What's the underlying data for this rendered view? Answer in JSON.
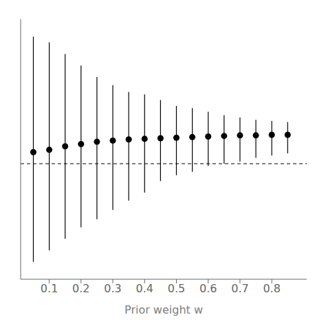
{
  "chart_data": {
    "type": "interval",
    "x": [
      0.05,
      0.1,
      0.15,
      0.2,
      0.25,
      0.3,
      0.35,
      0.4,
      0.45,
      0.5,
      0.55,
      0.6,
      0.65,
      0.7,
      0.75,
      0.8,
      0.85
    ],
    "values": [
      2.0,
      2.2,
      2.5,
      2.7,
      2.9,
      3.0,
      3.1,
      3.15,
      3.2,
      3.25,
      3.3,
      3.35,
      3.4,
      3.45,
      3.45,
      3.5,
      3.5
    ],
    "ci_upper": [
      12.0,
      11.5,
      10.5,
      9.5,
      8.5,
      7.8,
      7.2,
      7.0,
      6.5,
      6.0,
      5.8,
      5.5,
      5.2,
      5.0,
      4.8,
      4.7,
      4.6
    ],
    "ci_lower": [
      -7.5,
      -6.5,
      -5.5,
      -4.5,
      -3.8,
      -3.0,
      -2.2,
      -1.5,
      -0.5,
      0.0,
      0.3,
      0.8,
      1.0,
      1.2,
      1.5,
      1.7,
      1.9
    ],
    "dashed_y": 1.0,
    "line_style": "dashed",
    "xlabel": "Prior weight w",
    "xlim": [
      0.01,
      0.91
    ],
    "ylim": [
      -9.0,
      13.5
    ],
    "xticks": [
      0.1,
      0.2,
      0.3,
      0.4,
      0.5,
      0.6,
      0.7,
      0.8
    ],
    "color": "#000000",
    "tick_labels": "x",
    "grid": false,
    "marker": "circle"
  }
}
